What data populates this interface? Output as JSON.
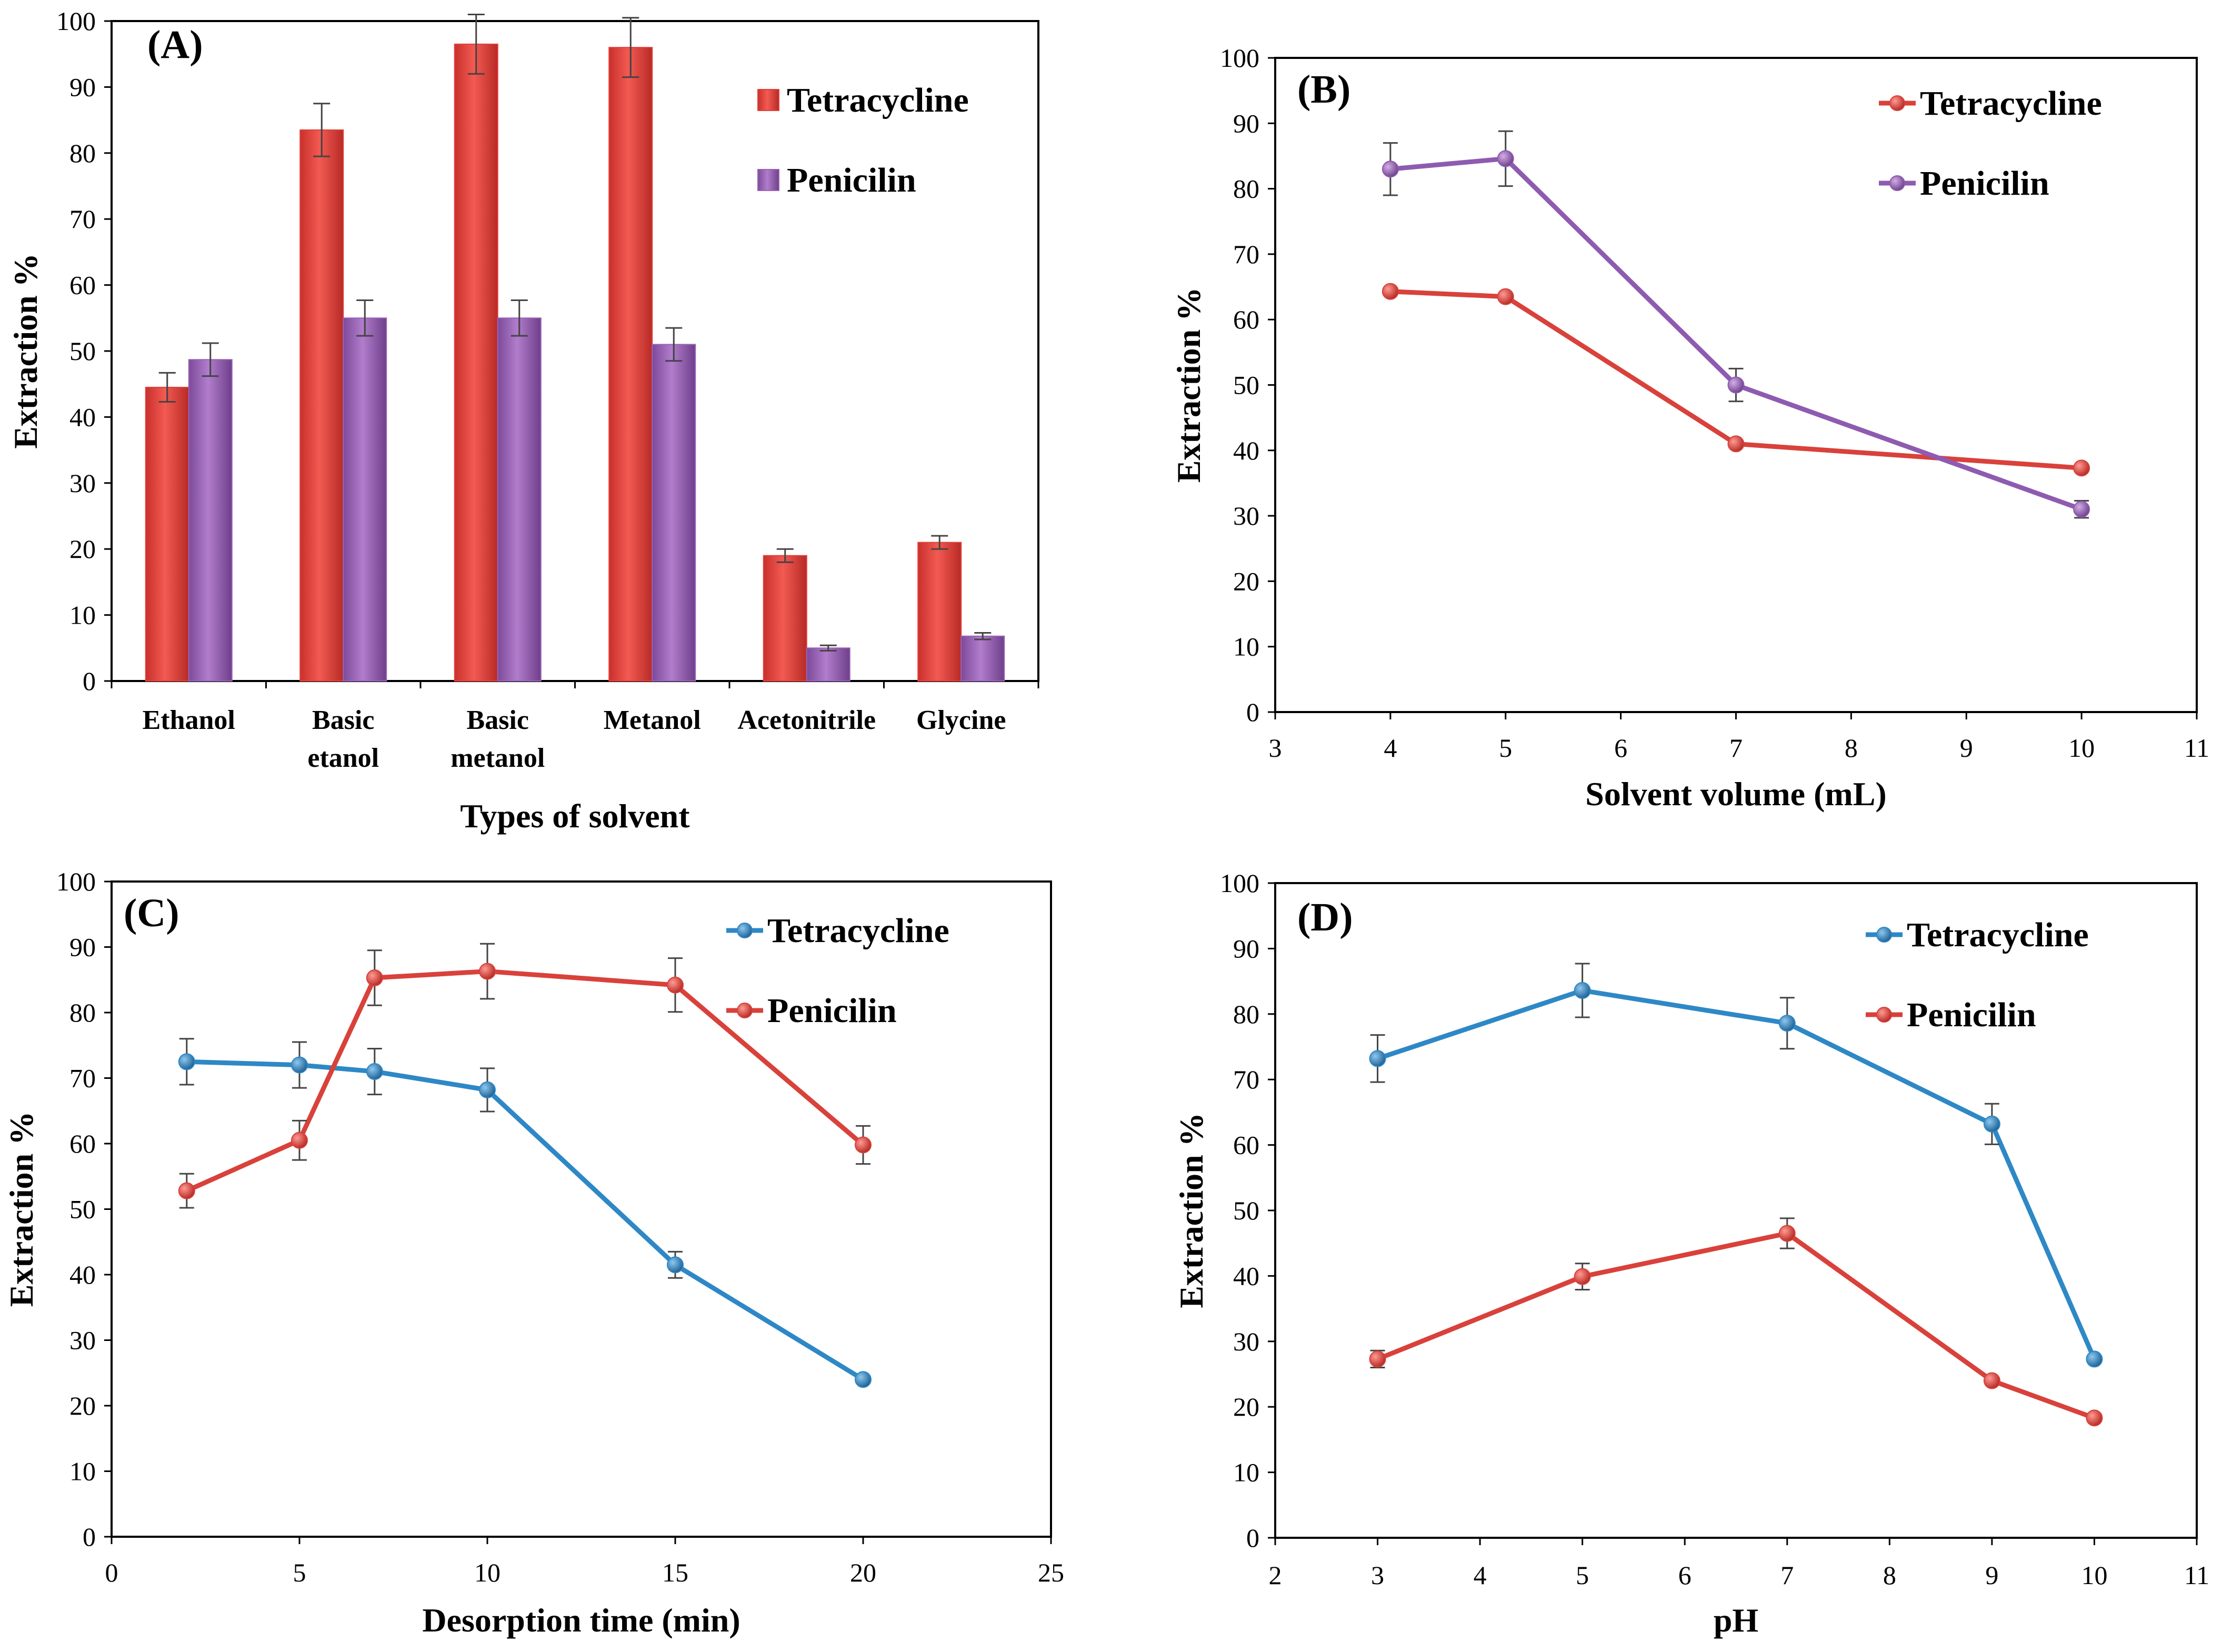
{
  "colors": {
    "red": "#E0403A",
    "purple": "#9A62B4",
    "blue": "#2E88C6",
    "red_line": "#D9413B",
    "purple_line": "#8E5BB0"
  },
  "chart_data": [
    {
      "id": "A",
      "type": "bar",
      "panel_label": "(A)",
      "title": "",
      "xlabel": "Types of solvent",
      "ylabel": "Extraction %",
      "ylim": [
        0,
        100
      ],
      "yticks": [
        0,
        10,
        20,
        30,
        40,
        50,
        60,
        70,
        80,
        90,
        100
      ],
      "categories": [
        [
          "Ethanol"
        ],
        [
          "Basic",
          "etanol"
        ],
        [
          "Basic",
          "metanol"
        ],
        [
          "Metanol"
        ],
        [
          "Acetonitrile"
        ],
        [
          "Glycine"
        ]
      ],
      "legend_position": "top-right",
      "series": [
        {
          "name": "Tetracycline",
          "color": "#E0403A",
          "values": [
            44.5,
            83.5,
            96.5,
            96,
            19,
            21
          ],
          "errors": [
            2.2,
            4,
            4.5,
            4.5,
            1,
            1
          ]
        },
        {
          "name": "Penicilin",
          "color": "#9A62B4",
          "values": [
            48.7,
            55,
            55,
            51,
            5,
            6.8
          ],
          "errors": [
            2.5,
            2.7,
            2.7,
            2.5,
            0.4,
            0.5
          ]
        }
      ]
    },
    {
      "id": "B",
      "type": "line",
      "panel_label": "(B)",
      "title": "",
      "xlabel": "Solvent volume (mL)",
      "ylabel": "Extraction %",
      "xlim": [
        3,
        11
      ],
      "xticks": [
        3,
        4,
        5,
        6,
        7,
        8,
        9,
        10,
        11
      ],
      "ylim": [
        0,
        100
      ],
      "yticks": [
        0,
        10,
        20,
        30,
        40,
        50,
        60,
        70,
        80,
        90,
        100
      ],
      "legend_position": "top-right",
      "series": [
        {
          "name": "Tetracycline",
          "color": "#D9413B",
          "x": [
            4,
            5,
            7,
            10
          ],
          "values": [
            64.3,
            63.5,
            41,
            37.3
          ],
          "errors": [
            0,
            0,
            0,
            0
          ]
        },
        {
          "name": "Penicilin",
          "color": "#8E5BB0",
          "x": [
            4,
            5,
            7,
            10
          ],
          "values": [
            83,
            84.6,
            50,
            31
          ],
          "errors": [
            4,
            4.2,
            2.5,
            1.3
          ]
        }
      ]
    },
    {
      "id": "C",
      "type": "line",
      "panel_label": "(C)",
      "title": "",
      "xlabel": "Desorption time (min)",
      "ylabel": "Extraction %",
      "xlim": [
        0,
        25
      ],
      "xticks": [
        0,
        5,
        10,
        15,
        20,
        25
      ],
      "ylim": [
        0,
        100
      ],
      "yticks": [
        0,
        10,
        20,
        30,
        40,
        50,
        60,
        70,
        80,
        90,
        100
      ],
      "legend_position": "top-right",
      "series": [
        {
          "name": "Tetracycline",
          "color": "#2E88C6",
          "x": [
            2,
            5,
            7,
            10,
            15,
            20
          ],
          "values": [
            72.5,
            72,
            71,
            68.2,
            41.5,
            24
          ],
          "errors": [
            3.5,
            3.5,
            3.5,
            3.3,
            2,
            0
          ]
        },
        {
          "name": "Penicilin",
          "color": "#D9413B",
          "x": [
            2,
            5,
            7,
            10,
            15,
            20
          ],
          "values": [
            52.8,
            60.5,
            85.3,
            86.3,
            84.2,
            59.8
          ],
          "errors": [
            2.6,
            3,
            4.2,
            4.2,
            4.1,
            2.9
          ]
        }
      ]
    },
    {
      "id": "D",
      "type": "line",
      "panel_label": "(D)",
      "title": "",
      "xlabel": "pH",
      "ylabel": "Extraction %",
      "xlim": [
        2,
        11
      ],
      "xticks": [
        2,
        3,
        4,
        5,
        6,
        7,
        8,
        9,
        10,
        11
      ],
      "ylim": [
        0,
        100
      ],
      "yticks": [
        0,
        10,
        20,
        30,
        40,
        50,
        60,
        70,
        80,
        90,
        100
      ],
      "legend_position": "top-right",
      "series": [
        {
          "name": "Tetracycline",
          "color": "#2E88C6",
          "x": [
            3,
            5,
            7,
            9,
            10
          ],
          "values": [
            73.2,
            83.6,
            78.6,
            63.2,
            27.3
          ],
          "errors": [
            3.6,
            4.1,
            3.9,
            3.1,
            0
          ]
        },
        {
          "name": "Penicilin",
          "color": "#D9413B",
          "x": [
            3,
            5,
            7,
            9,
            10
          ],
          "values": [
            27.3,
            39.9,
            46.5,
            24,
            18.3
          ],
          "errors": [
            1.3,
            2,
            2.3,
            0,
            0
          ]
        }
      ]
    }
  ]
}
